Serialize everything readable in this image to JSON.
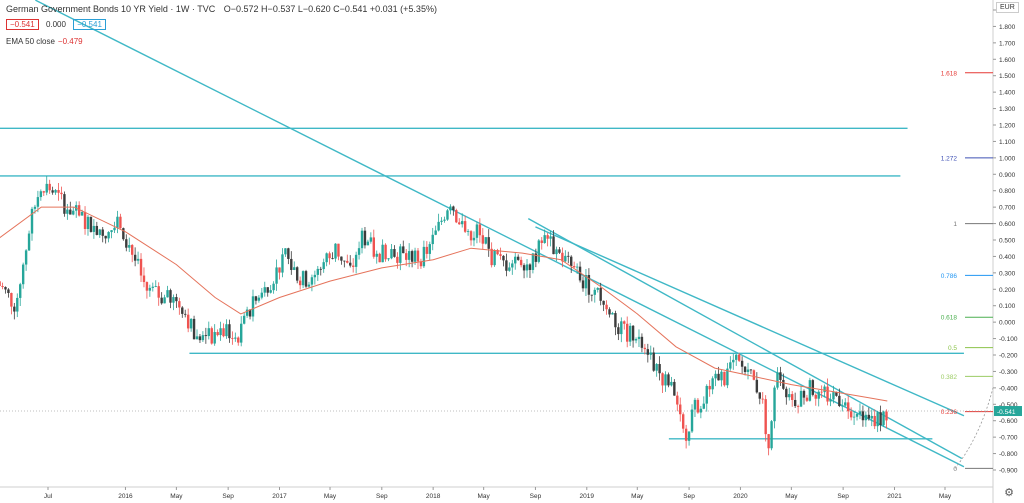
{
  "header": {
    "symbol": "German Government Bonds 10 YR Yield · 1W · TVC",
    "ohlc": "O−0.572  H−0.537  L−0.620  C−0.541  +0.031 (+5.35%)",
    "price_box_left": "−0.541",
    "price_box_mid": "0.000",
    "price_box_right": "−0.541",
    "ema_label": "EMA 50 close",
    "ema_value": "−0.479"
  },
  "axis_unit": "EUR",
  "last_price_label": "-0.541",
  "colors": {
    "up": "#26a69a",
    "down": "#ef5350",
    "ema": "#e5735b",
    "trendline": "#3fb8c6",
    "candle_dark": "#3c3c3c"
  },
  "chart_data": {
    "type": "candlestick",
    "ylim": [
      -0.95,
      1.95
    ],
    "y_ticks": [
      "1.900",
      "1.800",
      "1.700",
      "1.600",
      "1.500",
      "1.400",
      "1.300",
      "1.200",
      "1.100",
      "1.000",
      "0.900",
      "0.800",
      "0.700",
      "0.600",
      "0.500",
      "0.400",
      "0.300",
      "0.200",
      "0.100",
      "0.000",
      "-0.100",
      "-0.200",
      "-0.300",
      "-0.400",
      "-0.500",
      "-0.600",
      "-0.700",
      "-0.800",
      "-0.900"
    ],
    "x_ticks": [
      "Jul",
      "2016",
      "May",
      "Sep",
      "2017",
      "May",
      "Sep",
      "2018",
      "May",
      "Sep",
      "2019",
      "May",
      "Sep",
      "2020",
      "May",
      "Sep",
      "2021",
      "May"
    ],
    "x_tick_dates": [
      "2015-07-01",
      "2016-01-01",
      "2016-05-01",
      "2016-09-01",
      "2017-01-01",
      "2017-05-01",
      "2017-09-01",
      "2018-01-01",
      "2018-05-01",
      "2018-09-01",
      "2019-01-01",
      "2019-05-01",
      "2019-09-01",
      "2020-01-01",
      "2020-05-01",
      "2020-09-01",
      "2021-01-01",
      "2021-05-01"
    ],
    "close_path": [
      [
        "2015-03-01",
        0.25
      ],
      [
        "2015-04-15",
        0.1
      ],
      [
        "2015-05-20",
        0.6
      ],
      [
        "2015-06-15",
        0.85
      ],
      [
        "2015-07-10",
        0.8
      ],
      [
        "2015-08-15",
        0.7
      ],
      [
        "2015-10-01",
        0.6
      ],
      [
        "2015-11-15",
        0.55
      ],
      [
        "2015-12-20",
        0.6
      ],
      [
        "2016-01-20",
        0.4
      ],
      [
        "2016-02-20",
        0.2
      ],
      [
        "2016-04-01",
        0.15
      ],
      [
        "2016-05-15",
        0.1
      ],
      [
        "2016-06-20",
        -0.12
      ],
      [
        "2016-07-10",
        -0.1
      ],
      [
        "2016-08-15",
        -0.05
      ],
      [
        "2016-09-20",
        -0.1
      ],
      [
        "2016-10-30",
        0.1
      ],
      [
        "2016-12-10",
        0.25
      ],
      [
        "2017-01-15",
        0.4
      ],
      [
        "2017-02-20",
        0.25
      ],
      [
        "2017-04-01",
        0.3
      ],
      [
        "2017-05-15",
        0.45
      ],
      [
        "2017-06-20",
        0.3
      ],
      [
        "2017-07-15",
        0.55
      ],
      [
        "2017-08-20",
        0.4
      ],
      [
        "2017-09-15",
        0.45
      ],
      [
        "2017-10-20",
        0.4
      ],
      [
        "2017-12-10",
        0.4
      ],
      [
        "2018-01-10",
        0.55
      ],
      [
        "2018-02-10",
        0.75
      ],
      [
        "2018-03-15",
        0.55
      ],
      [
        "2018-04-15",
        0.55
      ],
      [
        "2018-05-20",
        0.4
      ],
      [
        "2018-06-20",
        0.35
      ],
      [
        "2018-07-20",
        0.4
      ],
      [
        "2018-08-20",
        0.35
      ],
      [
        "2018-09-20",
        0.5
      ],
      [
        "2018-10-15",
        0.45
      ],
      [
        "2018-11-20",
        0.35
      ],
      [
        "2018-12-20",
        0.25
      ],
      [
        "2019-01-20",
        0.2
      ],
      [
        "2019-02-20",
        0.1
      ],
      [
        "2019-03-20",
        -0.05
      ],
      [
        "2019-05-15",
        -0.1
      ],
      [
        "2019-06-20",
        -0.3
      ],
      [
        "2019-07-20",
        -0.4
      ],
      [
        "2019-08-20",
        -0.7
      ],
      [
        "2019-09-10",
        -0.55
      ],
      [
        "2019-10-15",
        -0.4
      ],
      [
        "2019-11-20",
        -0.35
      ],
      [
        "2019-12-20",
        -0.25
      ],
      [
        "2020-01-20",
        -0.3
      ],
      [
        "2020-02-20",
        -0.45
      ],
      [
        "2020-03-10",
        -0.8
      ],
      [
        "2020-03-25",
        -0.3
      ],
      [
        "2020-04-20",
        -0.5
      ],
      [
        "2020-05-20",
        -0.45
      ],
      [
        "2020-06-20",
        -0.4
      ],
      [
        "2020-07-20",
        -0.45
      ],
      [
        "2020-08-20",
        -0.45
      ],
      [
        "2020-09-20",
        -0.52
      ],
      [
        "2020-10-20",
        -0.6
      ],
      [
        "2020-11-20",
        -0.58
      ],
      [
        "2020-12-15",
        -0.55
      ]
    ],
    "ema50": [
      [
        "2015-03-01",
        0.5
      ],
      [
        "2015-06-15",
        0.7
      ],
      [
        "2015-09-01",
        0.7
      ],
      [
        "2016-01-01",
        0.55
      ],
      [
        "2016-05-01",
        0.35
      ],
      [
        "2016-08-01",
        0.15
      ],
      [
        "2016-10-01",
        0.05
      ],
      [
        "2017-01-01",
        0.15
      ],
      [
        "2017-05-01",
        0.25
      ],
      [
        "2017-09-01",
        0.33
      ],
      [
        "2018-01-01",
        0.38
      ],
      [
        "2018-04-01",
        0.45
      ],
      [
        "2018-08-01",
        0.42
      ],
      [
        "2018-11-01",
        0.38
      ],
      [
        "2019-02-01",
        0.22
      ],
      [
        "2019-05-01",
        0.05
      ],
      [
        "2019-08-01",
        -0.15
      ],
      [
        "2019-11-01",
        -0.28
      ],
      [
        "2020-02-01",
        -0.33
      ],
      [
        "2020-05-01",
        -0.38
      ],
      [
        "2020-08-01",
        -0.42
      ],
      [
        "2020-11-01",
        -0.46
      ],
      [
        "2020-12-15",
        -0.48
      ]
    ],
    "fib_levels": [
      {
        "label": "1.618",
        "value": 1.518,
        "color": "#e53935"
      },
      {
        "label": "1.272",
        "value": 1.0,
        "color": "#3f51b5"
      },
      {
        "label": "1",
        "value": 0.6,
        "color": "#777777"
      },
      {
        "label": "0.786",
        "value": 0.285,
        "color": "#2196f3"
      },
      {
        "label": "0.618",
        "value": 0.03,
        "color": "#4caf50"
      },
      {
        "label": "0.5",
        "value": -0.155,
        "color": "#8bc34a"
      },
      {
        "label": "0.382",
        "value": -0.33,
        "color": "#9ccc65"
      },
      {
        "label": "0.236",
        "value": -0.545,
        "color": "#e53935"
      },
      {
        "label": "0",
        "value": -0.89,
        "color": "#777777"
      }
    ],
    "horizontal_lines": [
      {
        "value": 1.18,
        "from": "2015-03-01",
        "to": "2021-02-01"
      },
      {
        "value": 0.89,
        "from": "2015-03-01",
        "to": "2021-01-15"
      },
      {
        "value": -0.19,
        "from": "2016-06-01",
        "to": "2021-06-15"
      },
      {
        "value": -0.71,
        "from": "2019-07-15",
        "to": "2021-04-01"
      }
    ],
    "trend_lines": [
      {
        "from": [
          "2015-06-01",
          1.96
        ],
        "to": [
          "2021-06-15",
          -0.88
        ]
      },
      {
        "from": [
          "2018-09-01",
          0.58
        ],
        "to": [
          "2021-06-15",
          -0.57
        ]
      },
      {
        "from": [
          "2018-08-15",
          0.63
        ],
        "to": [
          "2021-06-10",
          -0.83
        ]
      }
    ],
    "last_price": -0.541
  }
}
